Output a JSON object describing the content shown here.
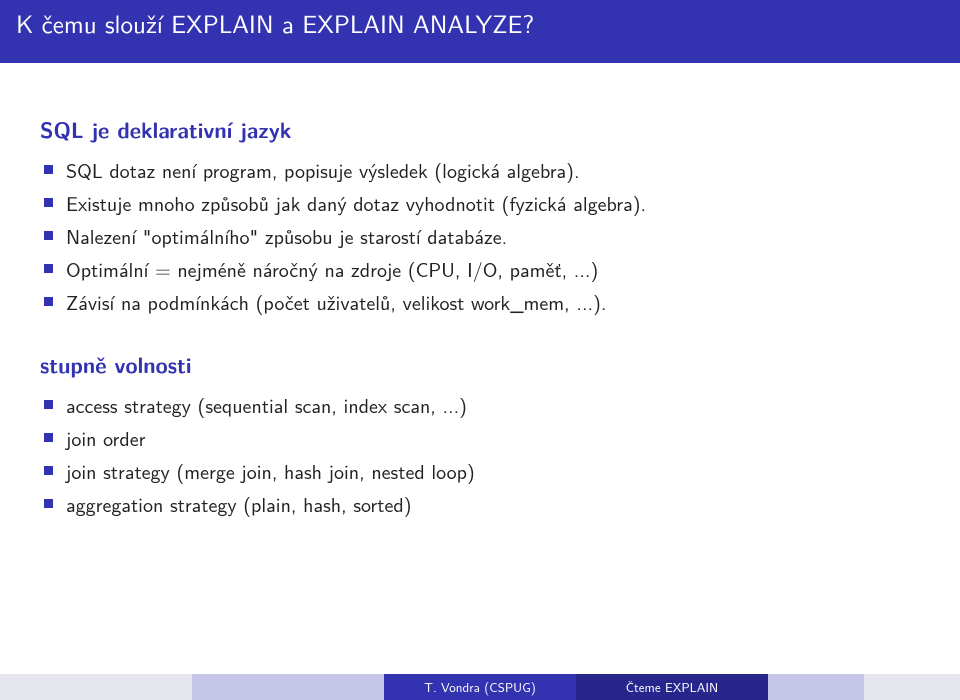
{
  "title": "K čemu slouží EXPLAIN a EXPLAIN ANALYZE?",
  "colors": {
    "accent": "#3333b2",
    "footer_dark": "#26268c",
    "footer_light1": "#c5c5e8",
    "footer_light2": "#e6e6ef",
    "background": "#ffffff",
    "text": "#222222"
  },
  "blocks": [
    {
      "heading": "SQL je deklarativní jazyk",
      "items": [
        "SQL dotaz není program, popisuje výsledek (logická algebra).",
        "Existuje mnoho způsobů jak daný dotaz vyhodnotit (fyzická algebra).",
        "Nalezení \"optimálního\" způsobu je starostí databáze.",
        "Optimální = nejméně náročný na zdroje (CPU, I/O, paměť, ...)",
        "Závisí na podmínkách (počet uživatelů, velikost work_mem, ...)."
      ]
    },
    {
      "heading": "stupně volnosti",
      "items": [
        "access strategy (sequential scan, index scan, ...)",
        "join order",
        "join strategy (merge join, hash join, nested loop)",
        "aggregation strategy (plain, hash, sorted)"
      ]
    }
  ],
  "footer": {
    "left": "T. Vondra (CSPUG)",
    "right": "Čteme EXPLAIN"
  }
}
